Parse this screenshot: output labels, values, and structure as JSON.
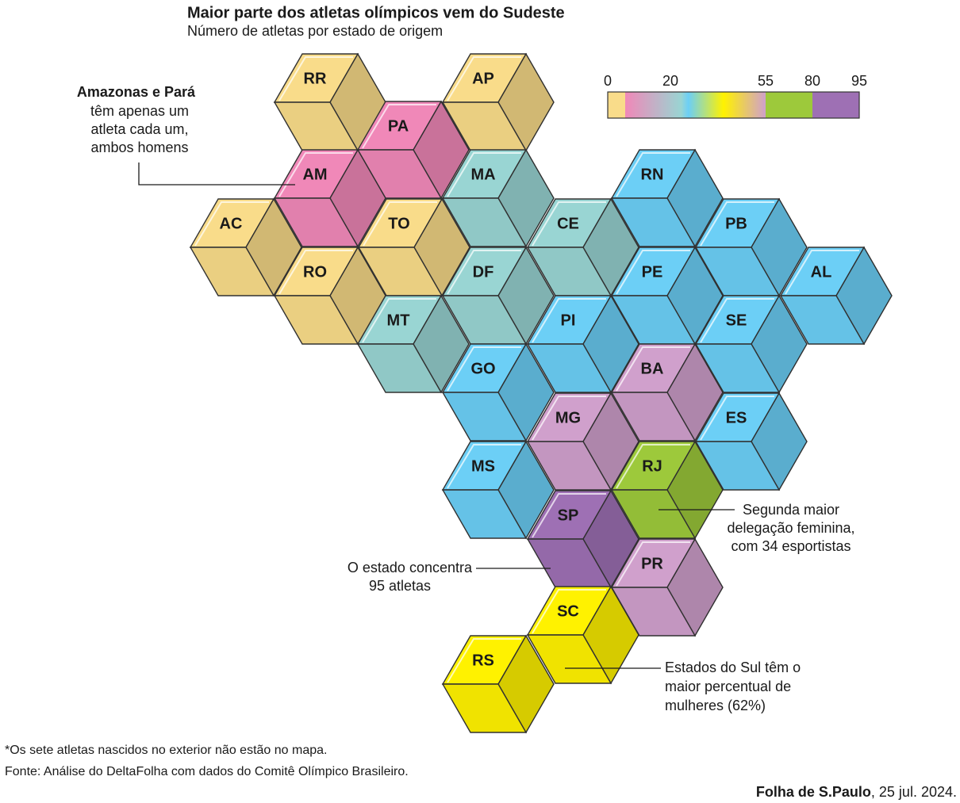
{
  "title": "Maior parte dos atletas olímpicos vem do Sudeste",
  "subtitle": "Número de atletas por estado de origem",
  "legend": {
    "ticks": [
      0,
      20,
      55,
      80,
      95
    ],
    "colors": [
      "#f9dc8a",
      "#f088b8",
      "#99d5d3",
      "#6ccff6",
      "#fff200",
      "#d0a0cc",
      "#9dc93b",
      "#9e70b4"
    ]
  },
  "states": [
    {
      "label": "RR",
      "color": "#f9dc8a"
    },
    {
      "label": "AP",
      "color": "#f9dc8a"
    },
    {
      "label": "PA",
      "color": "#f088b8"
    },
    {
      "label": "AM",
      "color": "#f088b8"
    },
    {
      "label": "MA",
      "color": "#99d5d3"
    },
    {
      "label": "RN",
      "color": "#6ccff6"
    },
    {
      "label": "AC",
      "color": "#f9dc8a"
    },
    {
      "label": "TO",
      "color": "#f9dc8a"
    },
    {
      "label": "CE",
      "color": "#99d5d3"
    },
    {
      "label": "PB",
      "color": "#6ccff6"
    },
    {
      "label": "RO",
      "color": "#f9dc8a"
    },
    {
      "label": "DF",
      "color": "#99d5d3"
    },
    {
      "label": "PE",
      "color": "#6ccff6"
    },
    {
      "label": "AL",
      "color": "#6ccff6"
    },
    {
      "label": "MT",
      "color": "#99d5d3"
    },
    {
      "label": "PI",
      "color": "#6ccff6"
    },
    {
      "label": "SE",
      "color": "#6ccff6"
    },
    {
      "label": "GO",
      "color": "#6ccff6"
    },
    {
      "label": "BA",
      "color": "#d0a0cc"
    },
    {
      "label": "MG",
      "color": "#d0a0cc"
    },
    {
      "label": "ES",
      "color": "#6ccff6"
    },
    {
      "label": "MS",
      "color": "#6ccff6"
    },
    {
      "label": "RJ",
      "color": "#9dc93b"
    },
    {
      "label": "SP",
      "color": "#9e70b4"
    },
    {
      "label": "PR",
      "color": "#d0a0cc"
    },
    {
      "label": "SC",
      "color": "#fff200"
    },
    {
      "label": "RS",
      "color": "#fff200"
    }
  ],
  "annotations": {
    "north": {
      "bold": "Amazonas e Pará",
      "lines": [
        "têm apenas um",
        "atleta cada um,",
        "ambos homens"
      ]
    },
    "rj": {
      "lines": [
        "Segunda maior",
        "delegação feminina,",
        "com 34 esportistas"
      ]
    },
    "sp": {
      "lines": [
        "O estado concentra",
        "95 atletas"
      ]
    },
    "south": {
      "lines": [
        "Estados do Sul têm o",
        "maior percentual de",
        "mulheres (62%)"
      ]
    }
  },
  "footnote": "*Os sete atletas nascidos no exterior não estão no mapa.",
  "source": "Fonte: Análise do DeltaFolha com dados do Comitê Olímpico Brasileiro.",
  "credit": {
    "name": "Folha de S.Paulo",
    "date": ", 25 jul. 2024."
  }
}
